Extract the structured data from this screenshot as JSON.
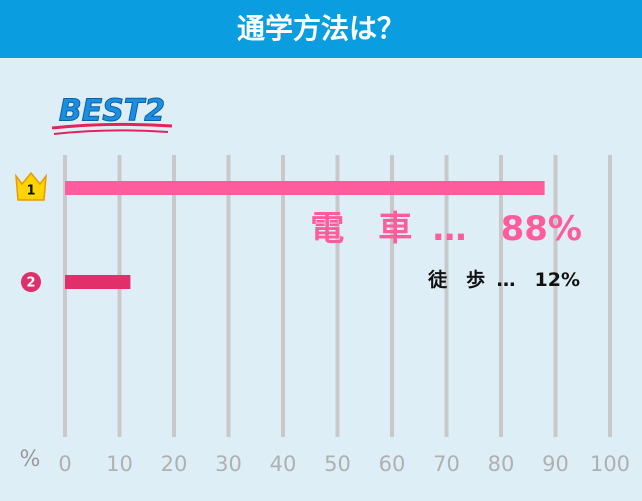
{
  "chart_data": {
    "type": "hbar",
    "title": "通学方法は？",
    "badge": "BEST2",
    "ranks": [
      "1",
      "2"
    ],
    "categories": [
      "電　車",
      "徒　歩"
    ],
    "values": [
      88,
      12
    ],
    "value_labels": [
      "…　88%",
      "…　12%"
    ],
    "colors": [
      "#ff5c9d",
      "#e02f6b"
    ],
    "label_colors": [
      "#ff5c9d",
      "#111111"
    ],
    "xlabel": "%",
    "xlim": [
      0,
      100
    ],
    "xticks": [
      0,
      10,
      20,
      30,
      40,
      50,
      60,
      70,
      80,
      90,
      100
    ],
    "grid": true
  }
}
